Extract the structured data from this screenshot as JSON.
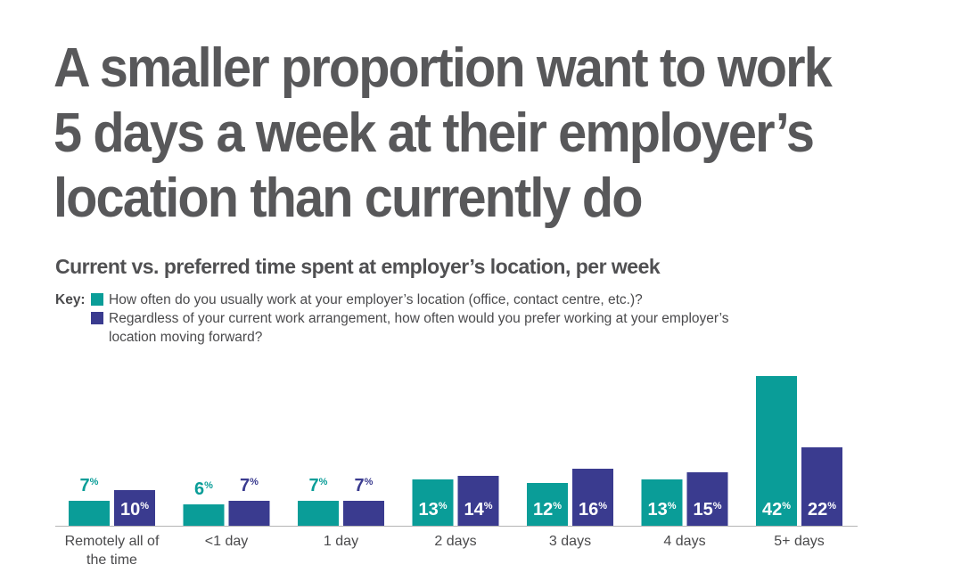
{
  "title": "A smaller proportion want to work 5 days a week at their employer’s location than currently do",
  "subtitle": "Current vs. preferred time spent at employer’s location, per week",
  "key": {
    "label": "Key:",
    "items": [
      {
        "text": "How often do you usually work at your employer’s location (office, contact centre, etc.)?",
        "color": "#0a9d98"
      },
      {
        "text": "Regardless of your current work arrangement, how often would you prefer working at your employer’s location moving forward?",
        "color": "#3a3b8f"
      }
    ]
  },
  "chart_data": {
    "type": "bar",
    "categories": [
      "Remotely all of the time",
      "<1 day",
      "1 day",
      "2 days",
      "3 days",
      "4 days",
      "5+ days"
    ],
    "series": [
      {
        "name": "How often do you usually work at your employer’s location (office, contact centre, etc.)?",
        "color": "#0a9d98",
        "values": [
          7,
          6,
          7,
          13,
          12,
          13,
          42
        ]
      },
      {
        "name": "Regardless of your current work arrangement, how often would you prefer working at your employer’s location moving forward?",
        "color": "#3a3b8f",
        "values": [
          10,
          7,
          7,
          14,
          16,
          15,
          22
        ]
      }
    ],
    "unit": "%",
    "ylim": [
      0,
      42
    ],
    "grid": false,
    "legend": "top-left"
  }
}
